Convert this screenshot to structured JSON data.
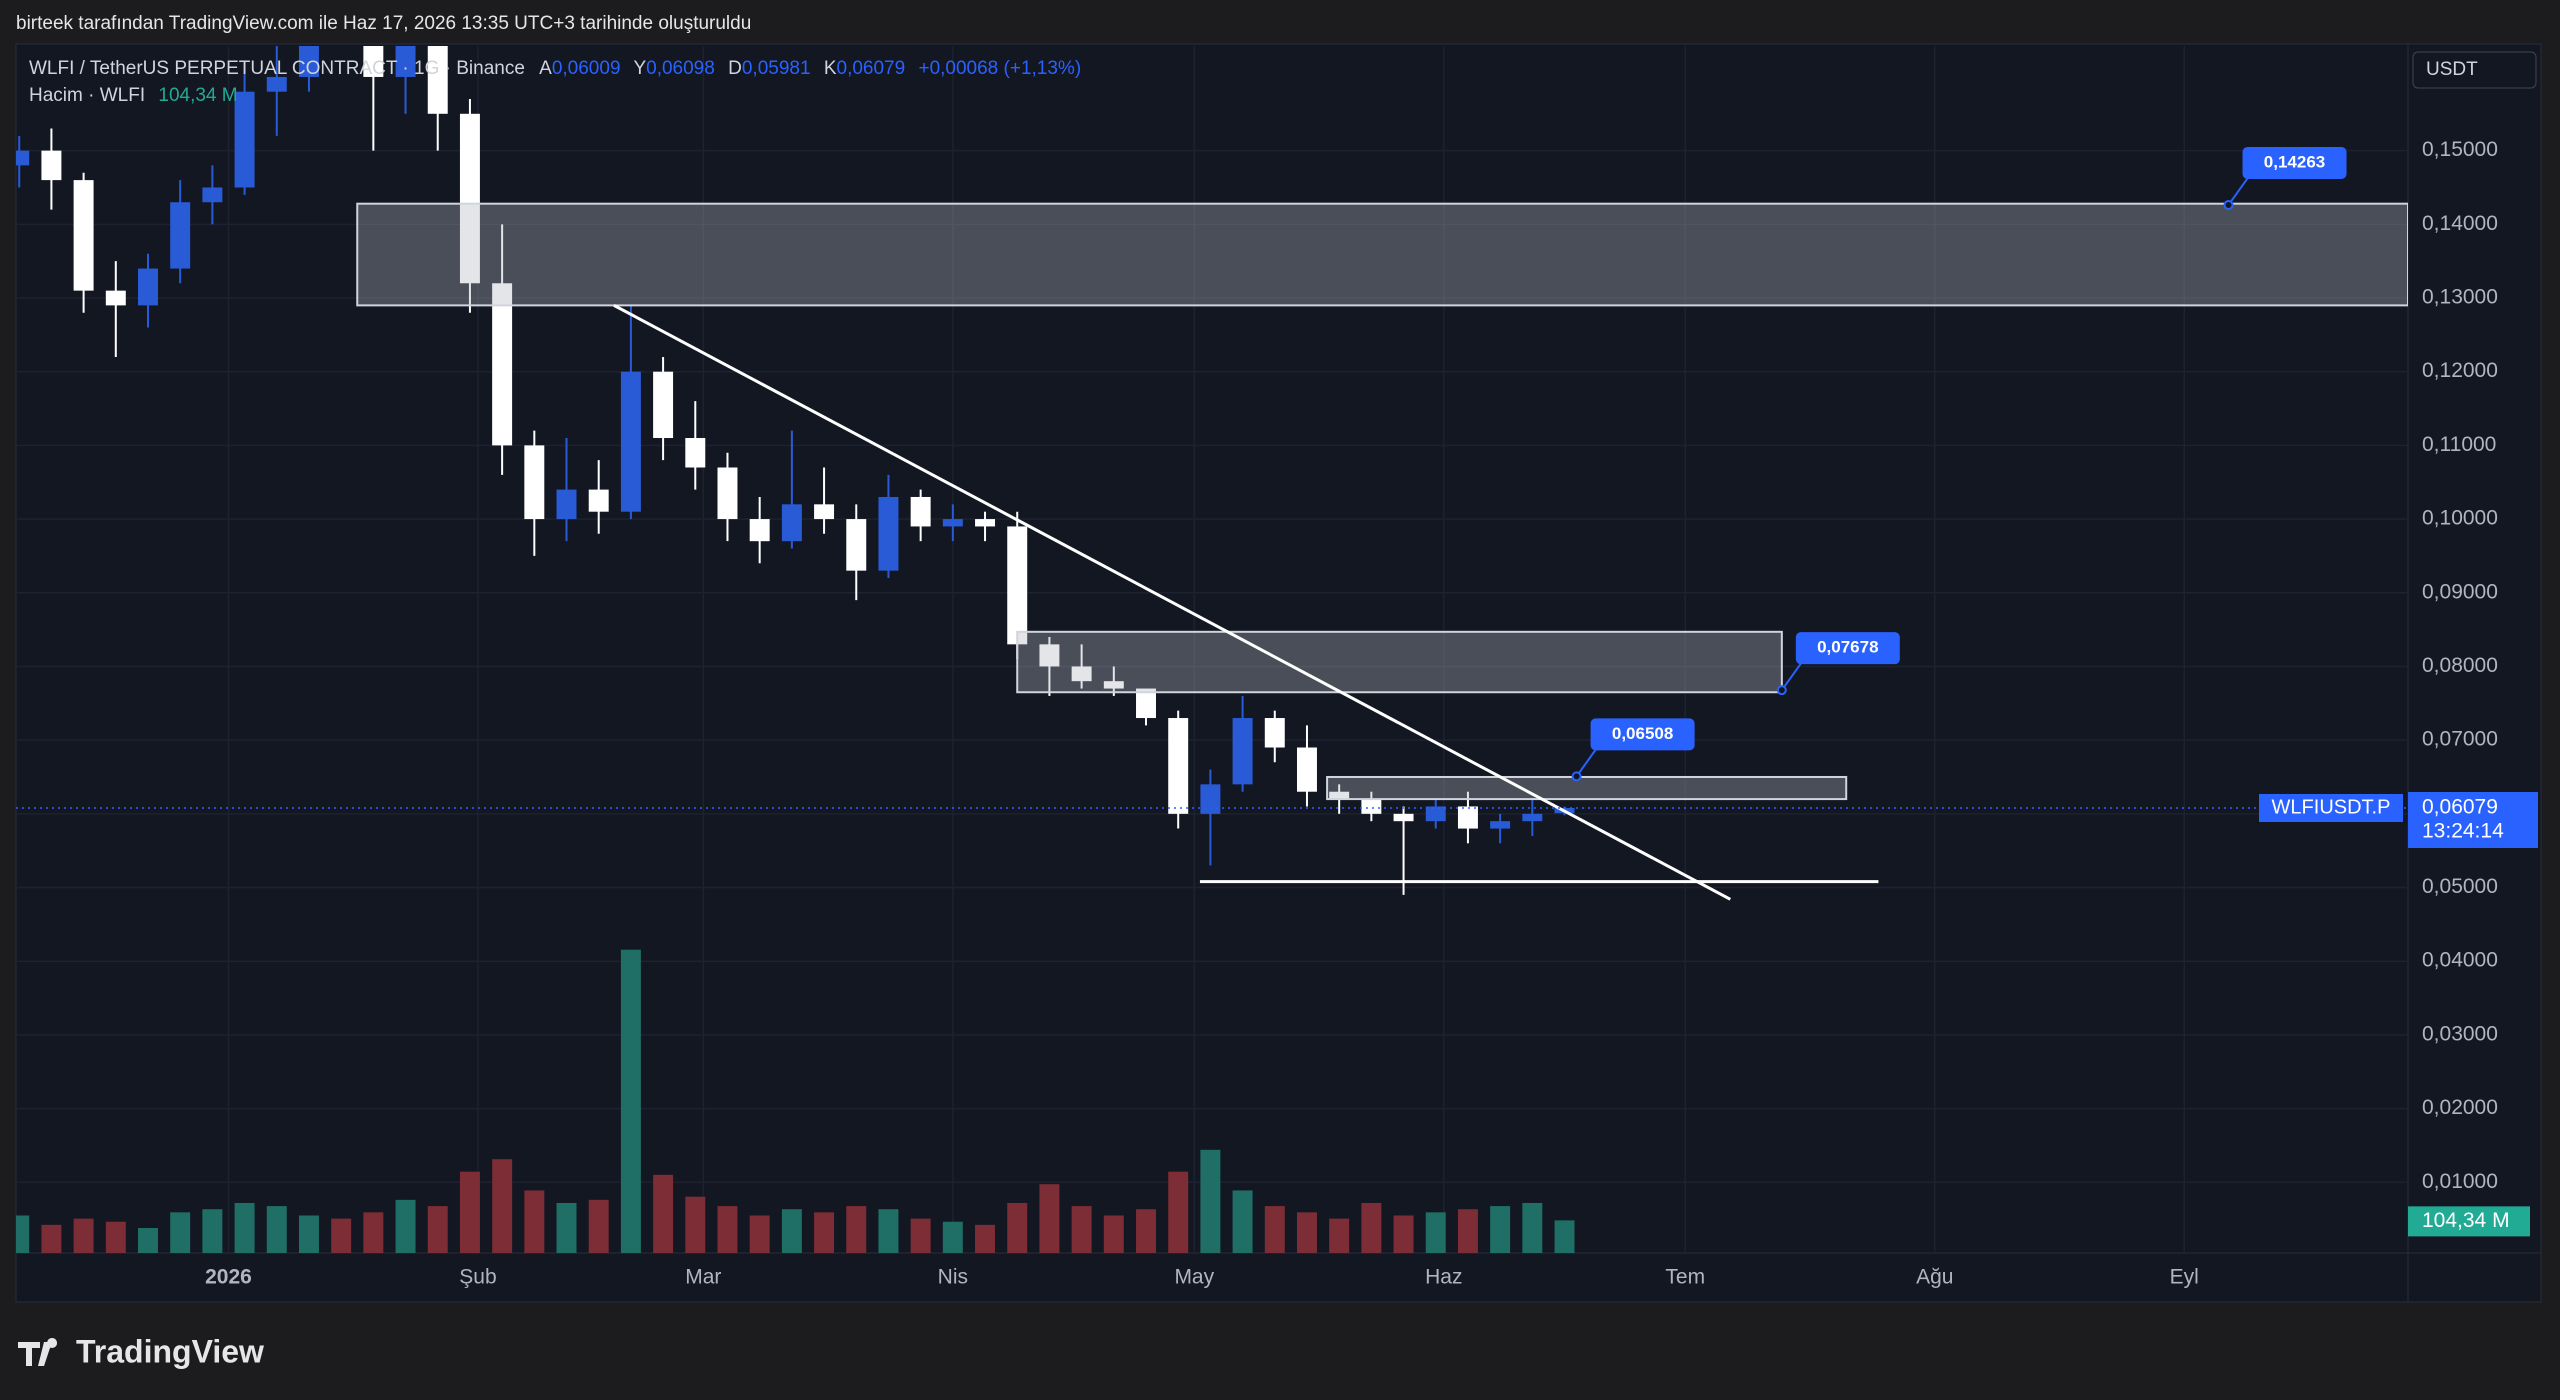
{
  "header": {
    "caption": "birteek tarafından TradingView.com ile Haz 17, 2026 13:35 UTC+3 tarihinde oluşturuldu",
    "brand": "TradingView"
  },
  "chart_data": {
    "type": "candlestick",
    "legend": {
      "symbol": "WLFI / TetherUS PERPETUAL CONTRACT · 1G · Binance",
      "open_key": "A",
      "open": "0,06009",
      "high_key": "Y",
      "high": "0,06098",
      "low_key": "D",
      "low": "0,05981",
      "close_key": "K",
      "close": "0,06079",
      "change": "+0,00068 (+1,13%)",
      "volume_name": "Hacim · WLFI",
      "volume": "104,34 M"
    },
    "currency": "USDT",
    "symbol_tag": "WLFIUSDT.P",
    "price_tag": "0,06079",
    "countdown": "13:24:14",
    "volume_tag": "104,34 M",
    "x": [
      -26,
      -22,
      -18,
      -14,
      -10,
      -6,
      -2,
      2,
      6,
      10,
      14,
      18,
      22,
      26,
      30,
      34,
      38,
      42,
      46,
      50,
      54,
      58,
      62,
      66,
      70,
      74,
      78,
      82,
      86,
      90,
      94,
      98,
      102,
      106,
      110,
      114,
      118,
      122,
      126,
      130,
      134,
      138,
      142,
      146,
      150,
      154,
      158,
      162,
      166
    ],
    "open": [
      0.148,
      0.15,
      0.146,
      0.131,
      0.129,
      0.134,
      0.143,
      0.145,
      0.158,
      0.16,
      0.172,
      0.17,
      0.16,
      0.165,
      0.155,
      0.132,
      0.11,
      0.1,
      0.104,
      0.101,
      0.12,
      0.111,
      0.107,
      0.1,
      0.097,
      0.102,
      0.1,
      0.093,
      0.103,
      0.099,
      0.1,
      0.099,
      0.083,
      0.08,
      0.078,
      0.077,
      0.073,
      0.06,
      0.064,
      0.073,
      0.069,
      0.063,
      0.062,
      0.06,
      0.059,
      0.061,
      0.058,
      0.059,
      0.06009
    ],
    "high": [
      0.152,
      0.153,
      0.147,
      0.135,
      0.136,
      0.146,
      0.148,
      0.162,
      0.166,
      0.178,
      0.18,
      0.175,
      0.17,
      0.168,
      0.157,
      0.14,
      0.112,
      0.111,
      0.108,
      0.129,
      0.122,
      0.116,
      0.109,
      0.103,
      0.112,
      0.107,
      0.102,
      0.106,
      0.104,
      0.102,
      0.101,
      0.101,
      0.084,
      0.083,
      0.08,
      0.077,
      0.074,
      0.066,
      0.076,
      0.074,
      0.072,
      0.064,
      0.063,
      0.061,
      0.062,
      0.063,
      0.06,
      0.062,
      0.06098
    ],
    "low": [
      0.145,
      0.142,
      0.128,
      0.122,
      0.126,
      0.132,
      0.14,
      0.144,
      0.152,
      0.158,
      0.165,
      0.15,
      0.155,
      0.15,
      0.128,
      0.106,
      0.095,
      0.097,
      0.098,
      0.1,
      0.108,
      0.104,
      0.097,
      0.094,
      0.096,
      0.098,
      0.089,
      0.092,
      0.097,
      0.097,
      0.097,
      0.081,
      0.076,
      0.077,
      0.076,
      0.072,
      0.058,
      0.053,
      0.063,
      0.067,
      0.061,
      0.06,
      0.059,
      0.049,
      0.058,
      0.056,
      0.056,
      0.057,
      0.05981
    ],
    "close": [
      0.15,
      0.146,
      0.131,
      0.129,
      0.134,
      0.143,
      0.145,
      0.158,
      0.16,
      0.172,
      0.17,
      0.16,
      0.165,
      0.155,
      0.132,
      0.11,
      0.1,
      0.104,
      0.101,
      0.12,
      0.111,
      0.107,
      0.1,
      0.097,
      0.102,
      0.1,
      0.093,
      0.103,
      0.099,
      0.1,
      0.099,
      0.083,
      0.08,
      0.078,
      0.077,
      0.073,
      0.06,
      0.064,
      0.073,
      0.069,
      0.063,
      0.062,
      0.06,
      0.059,
      0.061,
      0.058,
      0.059,
      0.06,
      0.06079
    ],
    "volume": [
      120,
      90,
      110,
      100,
      80,
      130,
      140,
      160,
      150,
      120,
      110,
      130,
      170,
      150,
      260,
      300,
      200,
      160,
      170,
      970,
      250,
      180,
      150,
      120,
      140,
      130,
      150,
      140,
      110,
      100,
      90,
      160,
      220,
      150,
      120,
      140,
      260,
      330,
      200,
      150,
      130,
      110,
      160,
      120,
      130,
      140,
      150,
      160,
      104.34
    ],
    "up_color": "#2a5bd7",
    "down_color": "#ffffff",
    "volume_up_color": "#1f6f66",
    "volume_down_color": "#7d2d35",
    "xlim": [
      -26.4,
      270.8
    ],
    "xticks": [
      {
        "value": 0,
        "label": "2026"
      },
      {
        "value": 31,
        "label": "Şub"
      },
      {
        "value": 59,
        "label": "Mar"
      },
      {
        "value": 90,
        "label": "Nis"
      },
      {
        "value": 120,
        "label": "May"
      },
      {
        "value": 151,
        "label": "Haz"
      },
      {
        "value": 181,
        "label": "Tem"
      },
      {
        "value": 212,
        "label": "Ağu"
      },
      {
        "value": 243,
        "label": "Eyl"
      }
    ],
    "ylim": [
      0.0004,
      0.1642
    ],
    "yticks": [
      {
        "value": 0.01,
        "label": "0,01000"
      },
      {
        "value": 0.02,
        "label": "0,02000"
      },
      {
        "value": 0.03,
        "label": "0,03000"
      },
      {
        "value": 0.04,
        "label": "0,04000"
      },
      {
        "value": 0.05,
        "label": "0,05000"
      },
      {
        "value": 0.06,
        "label": "0,06000"
      },
      {
        "value": 0.07,
        "label": "0,07000"
      },
      {
        "value": 0.08,
        "label": "0,08000"
      },
      {
        "value": 0.09,
        "label": "0,09000"
      },
      {
        "value": 0.1,
        "label": "0,10000"
      },
      {
        "value": 0.11,
        "label": "0,11000"
      },
      {
        "value": 0.12,
        "label": "0,12000"
      },
      {
        "value": 0.13,
        "label": "0,13000"
      },
      {
        "value": 0.14,
        "label": "0,14000"
      },
      {
        "value": 0.15,
        "label": "0,15000"
      }
    ],
    "volume_lim": [
      0,
      3860
    ],
    "grid": true,
    "zones": [
      {
        "x": [
          16,
          270.8
        ],
        "y": [
          0.129,
          0.1428
        ]
      },
      {
        "x": [
          98,
          193
        ],
        "y": [
          0.0765,
          0.0847
        ]
      },
      {
        "x": [
          136.5,
          201
        ],
        "y": [
          0.062,
          0.065
        ]
      }
    ],
    "trendline": {
      "x": [
        47.9,
        186.6
      ],
      "y": [
        0.129,
        0.0484
      ]
    },
    "support": {
      "x": [
        120.7,
        205
      ],
      "y": 0.0508
    },
    "callouts": [
      {
        "x": 248.5,
        "value": 0.14263,
        "label": "0,14263"
      },
      {
        "x": 193,
        "value": 0.07678,
        "label": "0,07678"
      },
      {
        "x": 167.5,
        "value": 0.06508,
        "label": "0,06508"
      }
    ]
  }
}
